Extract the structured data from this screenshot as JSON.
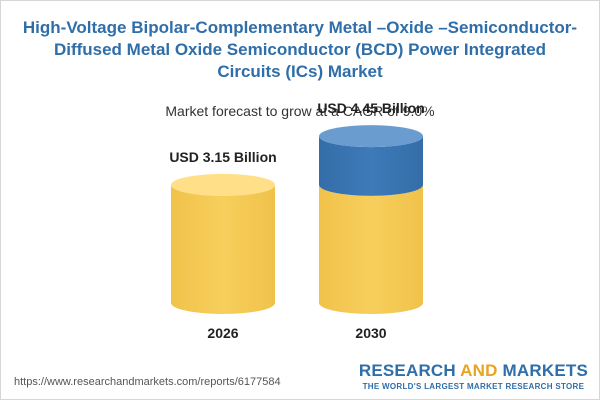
{
  "chart_data": {
    "type": "bar",
    "title": "High-Voltage Bipolar-Complementary Metal –Oxide –Semiconductor-Diffused Metal Oxide Semiconductor (BCD) Power Integrated Circuits (ICs) Market",
    "subtitle": "Market forecast to grow at a CAGR of 9.0%",
    "categories": [
      "2026",
      "2030"
    ],
    "values": [
      3.15,
      4.45
    ],
    "value_labels": [
      "USD 3.15 Billion",
      "USD 4.45 Billion"
    ],
    "unit": "USD Billion",
    "grid": false,
    "legend": "none"
  },
  "colors": {
    "base_body": "#f7cf5c",
    "base_top": "#ffe089",
    "growth_body": "#3d7ab8",
    "growth_top": "#6a9cd0",
    "title": "#2f6ea8",
    "logo_accent": "#e8a321"
  },
  "source_url": "https://www.researchandmarkets.com/reports/6177584",
  "logo": {
    "part1": "RESEARCH ",
    "part2": "AND",
    "part3": " MARKETS",
    "tagline": "THE WORLD'S LARGEST MARKET RESEARCH STORE"
  }
}
